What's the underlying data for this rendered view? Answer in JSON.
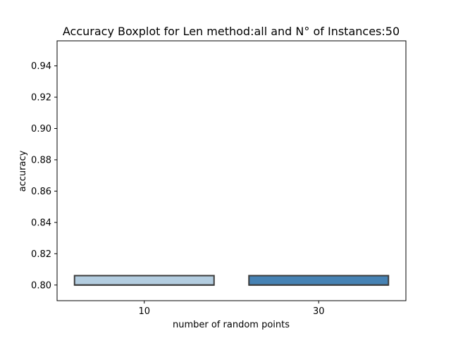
{
  "chart_data": {
    "type": "boxplot",
    "title": "Accuracy Boxplot for Len method:all and N° of Instances:50",
    "xlabel": "number of random points",
    "ylabel": "accuracy",
    "categories": [
      "10",
      "30"
    ],
    "boxes": [
      {
        "category": "10",
        "min": 0.8,
        "q1": 0.8,
        "median": 0.8,
        "q3": 0.806,
        "max": 0.806,
        "color": "#b3cde0"
      },
      {
        "category": "30",
        "min": 0.8,
        "q1": 0.8,
        "median": 0.8,
        "q3": 0.806,
        "max": 0.806,
        "color": "#4682b4"
      }
    ],
    "yticks": [
      "0.80",
      "0.82",
      "0.84",
      "0.86",
      "0.88",
      "0.90",
      "0.92",
      "0.94"
    ],
    "ylim": [
      0.79,
      0.956
    ],
    "grid": false,
    "legend": "none",
    "edge_color": "#3d3d3d"
  }
}
